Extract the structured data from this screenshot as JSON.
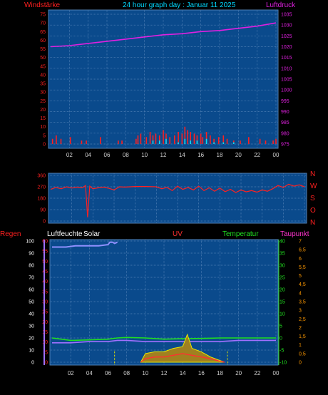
{
  "header": {
    "left": "Windstärke",
    "center": "24 hour graph day : Januar 11 2025",
    "right": "Luftdruck"
  },
  "x_ticks": [
    "02",
    "04",
    "06",
    "08",
    "10",
    "12",
    "14",
    "16",
    "18",
    "20",
    "22",
    "00"
  ],
  "colors": {
    "background": "#000000",
    "plot": "#0a4a8c",
    "grid": "#4f7fb4",
    "wind": "#ff2020",
    "gust": "#00e0ff",
    "pressure": "#e020e0",
    "direction": "#ff2020",
    "humidity": "#ffffff",
    "humidity_line": "#a070ff",
    "uv": "#ff3030",
    "temperature": "#20e020",
    "dewpoint": "#ff33cc",
    "solar": "#e8e800",
    "rain": "#ff2020"
  },
  "chart_data": [
    {
      "type": "line",
      "name": "wind-pressure",
      "left_axis": {
        "label": "Windstärke",
        "ticks": [
          "0",
          "5",
          "10",
          "15",
          "20",
          "25",
          "30",
          "35",
          "40",
          "45",
          "50",
          "55",
          "60",
          "65",
          "70",
          "75"
        ],
        "ylim": [
          0,
          75
        ]
      },
      "right_axis": {
        "label": "Luftdruck",
        "ticks": [
          "975",
          "980",
          "985",
          "990",
          "995",
          "1000",
          "1005",
          "1010",
          "1015",
          "1020",
          "1025",
          "1030",
          "1035"
        ],
        "ylim": [
          975,
          1035
        ]
      },
      "series": [
        {
          "name": "Luftdruck",
          "x": [
            0,
            2,
            4,
            6,
            8,
            10,
            12,
            14,
            16,
            18,
            20,
            22,
            24
          ],
          "values": [
            1020,
            1020.5,
            1021.5,
            1022.5,
            1023.5,
            1024.5,
            1025.5,
            1026,
            1027,
            1027.5,
            1028.5,
            1029.5,
            1031
          ]
        },
        {
          "name": "wind",
          "x": [
            0.2,
            0.6,
            1.1,
            2.1,
            3.3,
            3.8,
            5.3,
            7.2,
            7.6,
            9.1,
            9.3,
            9.6,
            10.2,
            10.6,
            10.9,
            11.2,
            11.6,
            12.0,
            12.3,
            12.7,
            13.2,
            13.6,
            14.0,
            14.3,
            14.6,
            14.9,
            15.3,
            15.6,
            16.0,
            16.2,
            16.6,
            17.0,
            17.4,
            17.9,
            18.4,
            18.8,
            19.5,
            20.2,
            21.1,
            22.3,
            22.9,
            23.7,
            24.0
          ],
          "values": [
            3,
            5,
            3,
            4,
            2,
            2,
            4,
            2,
            2,
            3,
            5,
            6,
            4,
            7,
            5,
            6,
            5,
            8,
            6,
            4,
            5,
            7,
            6,
            10,
            8,
            7,
            6,
            5,
            6,
            4,
            7,
            5,
            3,
            4,
            5,
            3,
            2,
            2,
            4,
            3,
            2,
            2,
            3
          ]
        },
        {
          "name": "gust",
          "x": [
            10.9,
            11.6,
            12.3,
            13.6,
            14.3,
            14.9,
            15.6,
            16.6,
            17.4,
            18.4,
            19.5
          ],
          "values": [
            2,
            2,
            3,
            1,
            3,
            2,
            2,
            3,
            1,
            1,
            1
          ]
        }
      ]
    },
    {
      "type": "line",
      "name": "wind-direction",
      "left_axis": {
        "ticks": [
          "0",
          "90",
          "180",
          "270",
          "360"
        ],
        "ylim": [
          0,
          360
        ]
      },
      "right_axis": {
        "ticks": [
          "N",
          "W",
          "S",
          "O",
          "N"
        ]
      },
      "series": [
        {
          "name": "direction",
          "x": [
            0,
            0.5,
            1,
            1.5,
            2,
            2.5,
            3,
            3.3,
            3.5,
            3.7,
            4,
            4.5,
            5,
            5.5,
            6,
            6.5,
            7,
            8,
            9,
            10,
            10.5,
            11,
            11.5,
            12,
            12.5,
            13,
            13.5,
            14,
            14.5,
            15,
            15.5,
            16,
            16.5,
            17,
            17.5,
            18,
            18.5,
            19,
            19.5,
            20,
            20.5,
            21,
            21.5,
            22,
            22.5,
            23,
            23.5,
            24
          ],
          "values": [
            250,
            265,
            255,
            270,
            260,
            268,
            262,
            280,
            30,
            275,
            255,
            262,
            268,
            258,
            245,
            270,
            268,
            272,
            272,
            270,
            255,
            265,
            240,
            275,
            250,
            265,
            245,
            275,
            240,
            262,
            235,
            260,
            232,
            250,
            225,
            245,
            230,
            240,
            228,
            245,
            235,
            255,
            280,
            265,
            290,
            275,
            285,
            270
          ]
        }
      ]
    },
    {
      "type": "line",
      "name": "temperature-humidity-solar",
      "labels": {
        "rain": "Regen",
        "humidity": "Luftfeuchte",
        "solar": "Solar",
        "uv": "UV",
        "temperature": "Temperatur",
        "dewpoint": "Taupunkt"
      },
      "humidity_axis": {
        "ticks": [
          "0",
          "10",
          "20",
          "30",
          "40",
          "50",
          "60",
          "70",
          "80",
          "90",
          "100"
        ],
        "ylim": [
          0,
          100
        ]
      },
      "rain_axis": {
        "ticks": [
          "0",
          "5",
          "10",
          "15",
          "20",
          "25",
          "30",
          "35",
          "40",
          "45",
          "50",
          "55",
          "60"
        ],
        "ylim": [
          0,
          60
        ]
      },
      "temperature_axis": {
        "ticks": [
          "-10",
          "-5",
          "0",
          "5",
          "10",
          "15",
          "20",
          "25",
          "30",
          "35",
          "40"
        ],
        "ylim": [
          -10,
          40
        ]
      },
      "uv_axis": {
        "ticks": [
          "0",
          "0,5",
          "1",
          "1,5",
          "2",
          "2,5",
          "3",
          "3,5",
          "4",
          "4,5",
          "5",
          "5,5",
          "6",
          "6,5",
          "7"
        ],
        "ylim": [
          0,
          7
        ]
      },
      "series": [
        {
          "name": "Luftfeuchte",
          "x": [
            0,
            1.5,
            2.5,
            3,
            4,
            5,
            6,
            6.2,
            6.5,
            6.7,
            7
          ],
          "values": [
            95,
            95,
            96,
            96,
            96,
            96,
            97,
            99,
            99,
            98,
            99
          ]
        },
        {
          "name": "humidity-low",
          "x": [
            0,
            2,
            4,
            6,
            7,
            8,
            10,
            12,
            14,
            16,
            18,
            20,
            22,
            24
          ],
          "values": [
            16,
            16,
            17,
            17,
            18,
            18,
            17,
            17,
            17,
            17,
            17,
            18,
            18,
            18
          ]
        },
        {
          "name": "Temperatur",
          "x": [
            0,
            2,
            4,
            6,
            7,
            8,
            10,
            12,
            14,
            16,
            18,
            20,
            22,
            24
          ],
          "values": [
            0,
            -1,
            -0.8,
            -0.5,
            0,
            0.2,
            0,
            -0.5,
            -0.3,
            -0.2,
            0,
            0,
            0,
            0
          ]
        },
        {
          "name": "Solar",
          "x": [
            9.5,
            10,
            11,
            12,
            13,
            14,
            14.5,
            15,
            16,
            17,
            18,
            18.5
          ],
          "values": [
            0,
            0.5,
            0.6,
            0.6,
            0.8,
            0.9,
            1.6,
            0.8,
            0.6,
            0.3,
            0.1,
            0
          ]
        },
        {
          "name": "UV",
          "x": [
            9.5,
            10,
            11,
            12,
            13,
            14,
            15,
            16,
            17,
            18,
            18.5
          ],
          "values": [
            0,
            0.2,
            0.3,
            0.3,
            0.4,
            0.5,
            0.4,
            0.3,
            0.2,
            0.05,
            0
          ]
        }
      ]
    }
  ]
}
